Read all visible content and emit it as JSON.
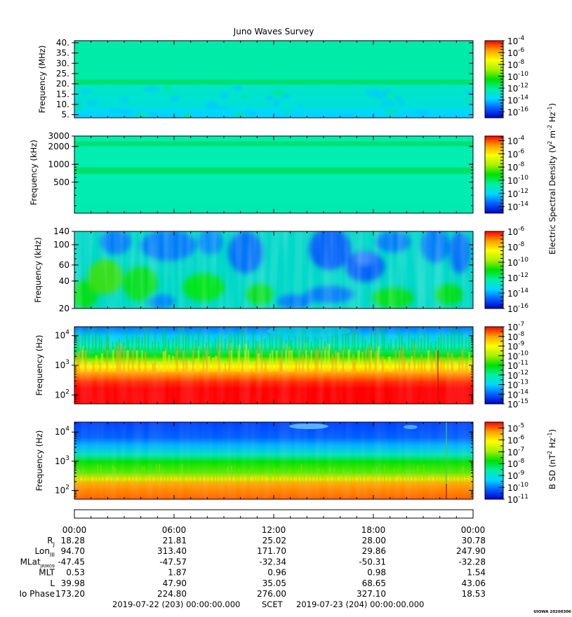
{
  "title": "Juno Waves Survey",
  "colors": {
    "colormap": [
      "#0000c8",
      "#0060ff",
      "#00d8ff",
      "#00f0a0",
      "#00e000",
      "#a8f000",
      "#ffff00",
      "#ffa000",
      "#ff0000"
    ]
  },
  "chart_data": [
    {
      "type": "heatmap",
      "title": "Juno Waves Survey",
      "ylabel": "Frequency (MHz)",
      "y_scale": "linear",
      "ylim": [
        3.5,
        41
      ],
      "y_ticks": [
        {
          "value": 40,
          "label": "40."
        },
        {
          "value": 35,
          "label": "35."
        },
        {
          "value": 30,
          "label": "30."
        },
        {
          "value": 25,
          "label": "25."
        },
        {
          "value": 20,
          "label": "20."
        },
        {
          "value": 15,
          "label": "15."
        },
        {
          "value": 10,
          "label": "10."
        },
        {
          "value": 5,
          "label": "5."
        }
      ],
      "colorbar": {
        "range_exp": [
          -17,
          -4
        ],
        "labels": [
          {
            "exp": -4,
            "base": "10",
            "power": "-4"
          },
          {
            "exp": -6,
            "base": "10",
            "power": "-6"
          },
          {
            "exp": -8,
            "base": "10",
            "power": "-8"
          },
          {
            "exp": -10,
            "base": "10",
            "power": "-10"
          },
          {
            "exp": -12,
            "base": "10",
            "power": "-12"
          },
          {
            "exp": -14,
            "base": "10",
            "power": "-14"
          },
          {
            "exp": -16,
            "base": "10",
            "power": "-16"
          }
        ]
      }
    },
    {
      "type": "heatmap",
      "ylabel": "Frequency (kHz)",
      "y_scale": "log",
      "ylim": [
        150,
        3000
      ],
      "y_ticks": [
        {
          "value": 3000,
          "label": "3000"
        },
        {
          "value": 2000,
          "label": "2000"
        },
        {
          "value": 1000,
          "label": "1000"
        },
        {
          "value": 500,
          "label": "500"
        }
      ],
      "colorbar": {
        "range_exp": [
          -15,
          -3.3
        ],
        "labels": [
          {
            "exp": -4,
            "base": "10",
            "power": "-4"
          },
          {
            "exp": -6,
            "base": "10",
            "power": "-6"
          },
          {
            "exp": -8,
            "base": "10",
            "power": "-8"
          },
          {
            "exp": -10,
            "base": "10",
            "power": "-10"
          },
          {
            "exp": -12,
            "base": "10",
            "power": "-12"
          },
          {
            "exp": -14,
            "base": "10",
            "power": "-14"
          }
        ]
      }
    },
    {
      "type": "heatmap",
      "ylabel": "Frequency (kHz)",
      "y_scale": "log",
      "ylim": [
        20,
        140
      ],
      "y_ticks": [
        {
          "value": 140,
          "label": "140"
        },
        {
          "value": 100,
          "label": "100"
        },
        {
          "value": 60,
          "label": "60"
        },
        {
          "value": 40,
          "label": "40"
        },
        {
          "value": 20,
          "label": "20"
        }
      ],
      "colorbar": {
        "range_exp": [
          -16,
          -6
        ],
        "labels": [
          {
            "exp": -6,
            "base": "10",
            "power": "-6"
          },
          {
            "exp": -8,
            "base": "10",
            "power": "-8"
          },
          {
            "exp": -10,
            "base": "10",
            "power": "-10"
          },
          {
            "exp": -12,
            "base": "10",
            "power": "-12"
          },
          {
            "exp": -14,
            "base": "10",
            "power": "-14"
          },
          {
            "exp": -16,
            "base": "10",
            "power": "-16"
          }
        ]
      }
    },
    {
      "type": "heatmap",
      "ylabel": "Frequency (Hz)",
      "y_scale": "log",
      "ylim": [
        50,
        20000
      ],
      "y_ticks": [
        {
          "value": 10000,
          "base": "10",
          "power": "4"
        },
        {
          "value": 1000,
          "base": "10",
          "power": "3"
        },
        {
          "value": 100,
          "base": "10",
          "power": "2"
        }
      ],
      "colorbar": {
        "range_exp": [
          -15,
          -7
        ],
        "labels": [
          {
            "exp": -7,
            "base": "10",
            "power": "-7"
          },
          {
            "exp": -8,
            "base": "10",
            "power": "-8"
          },
          {
            "exp": -9,
            "base": "10",
            "power": "-9"
          },
          {
            "exp": -10,
            "base": "10",
            "power": "-10"
          },
          {
            "exp": -11,
            "base": "10",
            "power": "-11"
          },
          {
            "exp": -12,
            "base": "10",
            "power": "-12"
          },
          {
            "exp": -13,
            "base": "10",
            "power": "-13"
          },
          {
            "exp": -14,
            "base": "10",
            "power": "-14"
          },
          {
            "exp": -15,
            "base": "10",
            "power": "-15"
          }
        ]
      }
    },
    {
      "type": "heatmap",
      "ylabel": "Frequency (Hz)",
      "y_scale": "log",
      "ylim": [
        50,
        22000
      ],
      "y_ticks": [
        {
          "value": 10000,
          "base": "10",
          "power": "4"
        },
        {
          "value": 1000,
          "base": "10",
          "power": "3"
        },
        {
          "value": 100,
          "base": "10",
          "power": "2"
        }
      ],
      "colorbar": {
        "range_exp": [
          -11,
          -4.5
        ],
        "labels": [
          {
            "exp": -5,
            "base": "10",
            "power": "-5"
          },
          {
            "exp": -6,
            "base": "10",
            "power": "-6"
          },
          {
            "exp": -7,
            "base": "10",
            "power": "-7"
          },
          {
            "exp": -8,
            "base": "10",
            "power": "-8"
          },
          {
            "exp": -9,
            "base": "10",
            "power": "-9"
          },
          {
            "exp": -10,
            "base": "10",
            "power": "-10"
          },
          {
            "exp": -11,
            "base": "10",
            "power": "-11"
          }
        ]
      }
    }
  ],
  "colorbar_titles": {
    "electric": {
      "text": "Electric Spectral Density (V",
      "sup1": "2",
      "mid": " m",
      "sup2": "-2",
      "mid2": " Hz",
      "sup3": "-1",
      "end": ")"
    },
    "magnetic": {
      "text": "B SD (nT",
      "sup1": "2",
      "mid": " Hz",
      "sup2": "-1",
      "end": ")"
    }
  },
  "time_axis": {
    "ticks": [
      "00:00",
      "06:00",
      "12:00",
      "18:00",
      "00:00"
    ],
    "rows": [
      {
        "label": "R",
        "sub": "J",
        "values": [
          "18.28",
          "21.81",
          "25.02",
          "28.00",
          "30.78"
        ]
      },
      {
        "label": "Lon",
        "sub": "III",
        "values": [
          "94.70",
          "313.40",
          "171.70",
          "29.86",
          "247.90"
        ]
      },
      {
        "label": "MLat",
        "sub": "JRM09",
        "values": [
          "-47.45",
          "-47.57",
          "-32.34",
          "-50.31",
          "-32.28"
        ]
      },
      {
        "label": "MLT",
        "sub": "",
        "values": [
          "0.53",
          "1.87",
          "0.96",
          "0.98",
          "1.54"
        ]
      },
      {
        "label": "L",
        "sub": "",
        "values": [
          "39.98",
          "47.90",
          "35.05",
          "68.65",
          "43.06"
        ]
      },
      {
        "label": "Io Phase",
        "sub": "",
        "values": [
          "173.20",
          "224.80",
          "276.00",
          "327.10",
          "18.53"
        ]
      }
    ],
    "start_label": "2019-07-22 (203) 00:00:00.000",
    "scet_label": "SCET",
    "end_label": "2019-07-23 (204) 00:00:00.000"
  },
  "credit": "UIOWA 20200306"
}
